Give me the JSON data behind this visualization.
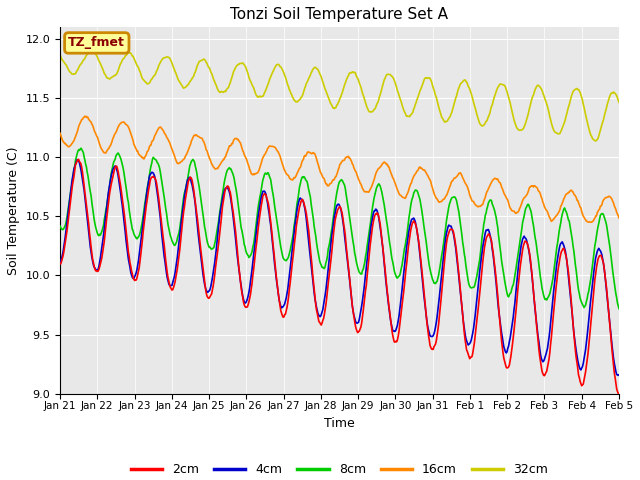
{
  "title": "Tonzi Soil Temperature Set A",
  "xlabel": "Time",
  "ylabel": "Soil Temperature (C)",
  "annotation_text": "TZ_fmet",
  "annotation_color": "#8b0000",
  "annotation_bg": "#ffff99",
  "annotation_border": "#cc8800",
  "ylim": [
    9.0,
    12.1
  ],
  "series_colors": {
    "2cm": "#ff0000",
    "4cm": "#0000cc",
    "8cm": "#00cc00",
    "16cm": "#ff8800",
    "32cm": "#cccc00"
  },
  "xtick_labels": [
    "Jan 21",
    "Jan 22",
    "Jan 23",
    "Jan 24",
    "Jan 25",
    "Jan 26",
    "Jan 27",
    "Jan 28",
    "Jan 29",
    "Jan 30",
    "Jan 31",
    "Feb 1",
    "Feb 2",
    "Feb 3",
    "Feb 4",
    "Feb 5"
  ],
  "ytick_values": [
    9.0,
    9.5,
    10.0,
    10.5,
    11.0,
    11.5,
    12.0
  ],
  "n_days": 15,
  "n_pts_per_day": 48
}
